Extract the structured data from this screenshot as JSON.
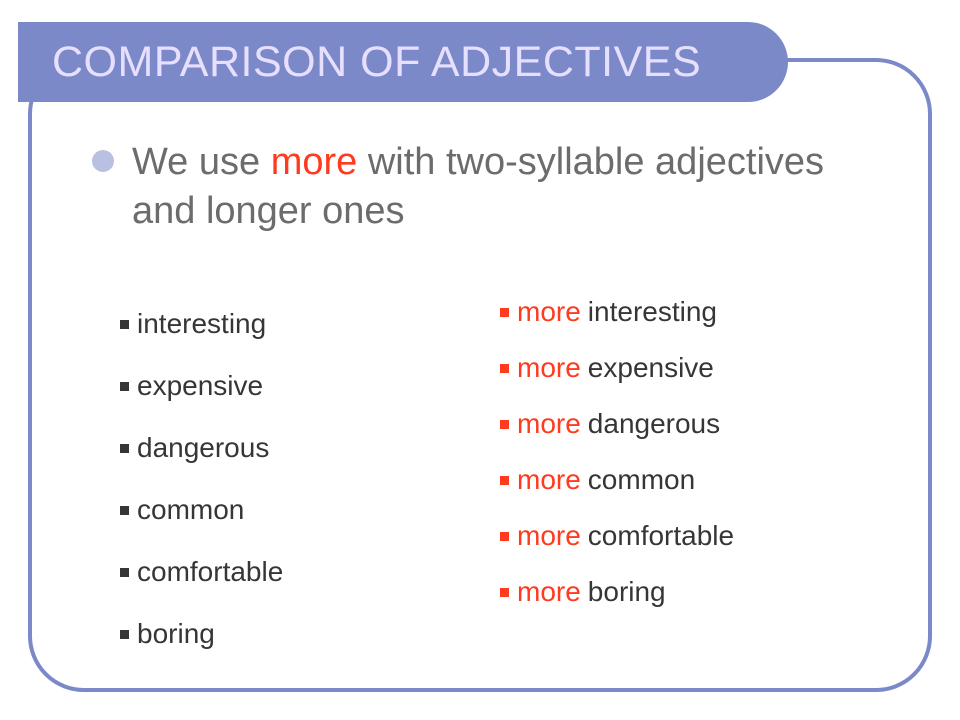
{
  "title": "COMPARISON OF ADJECTIVES",
  "intro": {
    "pre": "We use",
    "emph": "more",
    "post": "with two-syllable adjectives and longer ones"
  },
  "prefix_word": "more",
  "left_items": [
    "interesting",
    "expensive",
    "dangerous",
    "common",
    "comfortable",
    "boring"
  ],
  "right_items": [
    "interesting",
    "expensive",
    "dangerous",
    "common",
    "comfortable",
    "boring"
  ],
  "colors": {
    "accent": "#7b89c9",
    "accent_soft": "#b9c1e3",
    "title_text": "#e6dfff",
    "body_text": "#6c6c6c",
    "item_text": "#363636",
    "highlight": "#ff3a1f",
    "background": "#ffffff"
  },
  "typography": {
    "title_fontsize": 43,
    "intro_fontsize": 38,
    "item_fontsize": 28,
    "font_family": "Arial"
  },
  "layout": {
    "frame_border_radius": 56,
    "frame_border_width": 4,
    "titlebar_height": 80,
    "titlebar_radius": 44,
    "disc_bullet_size": 22,
    "square_bullet_size": 9,
    "left_col_width": 380
  }
}
